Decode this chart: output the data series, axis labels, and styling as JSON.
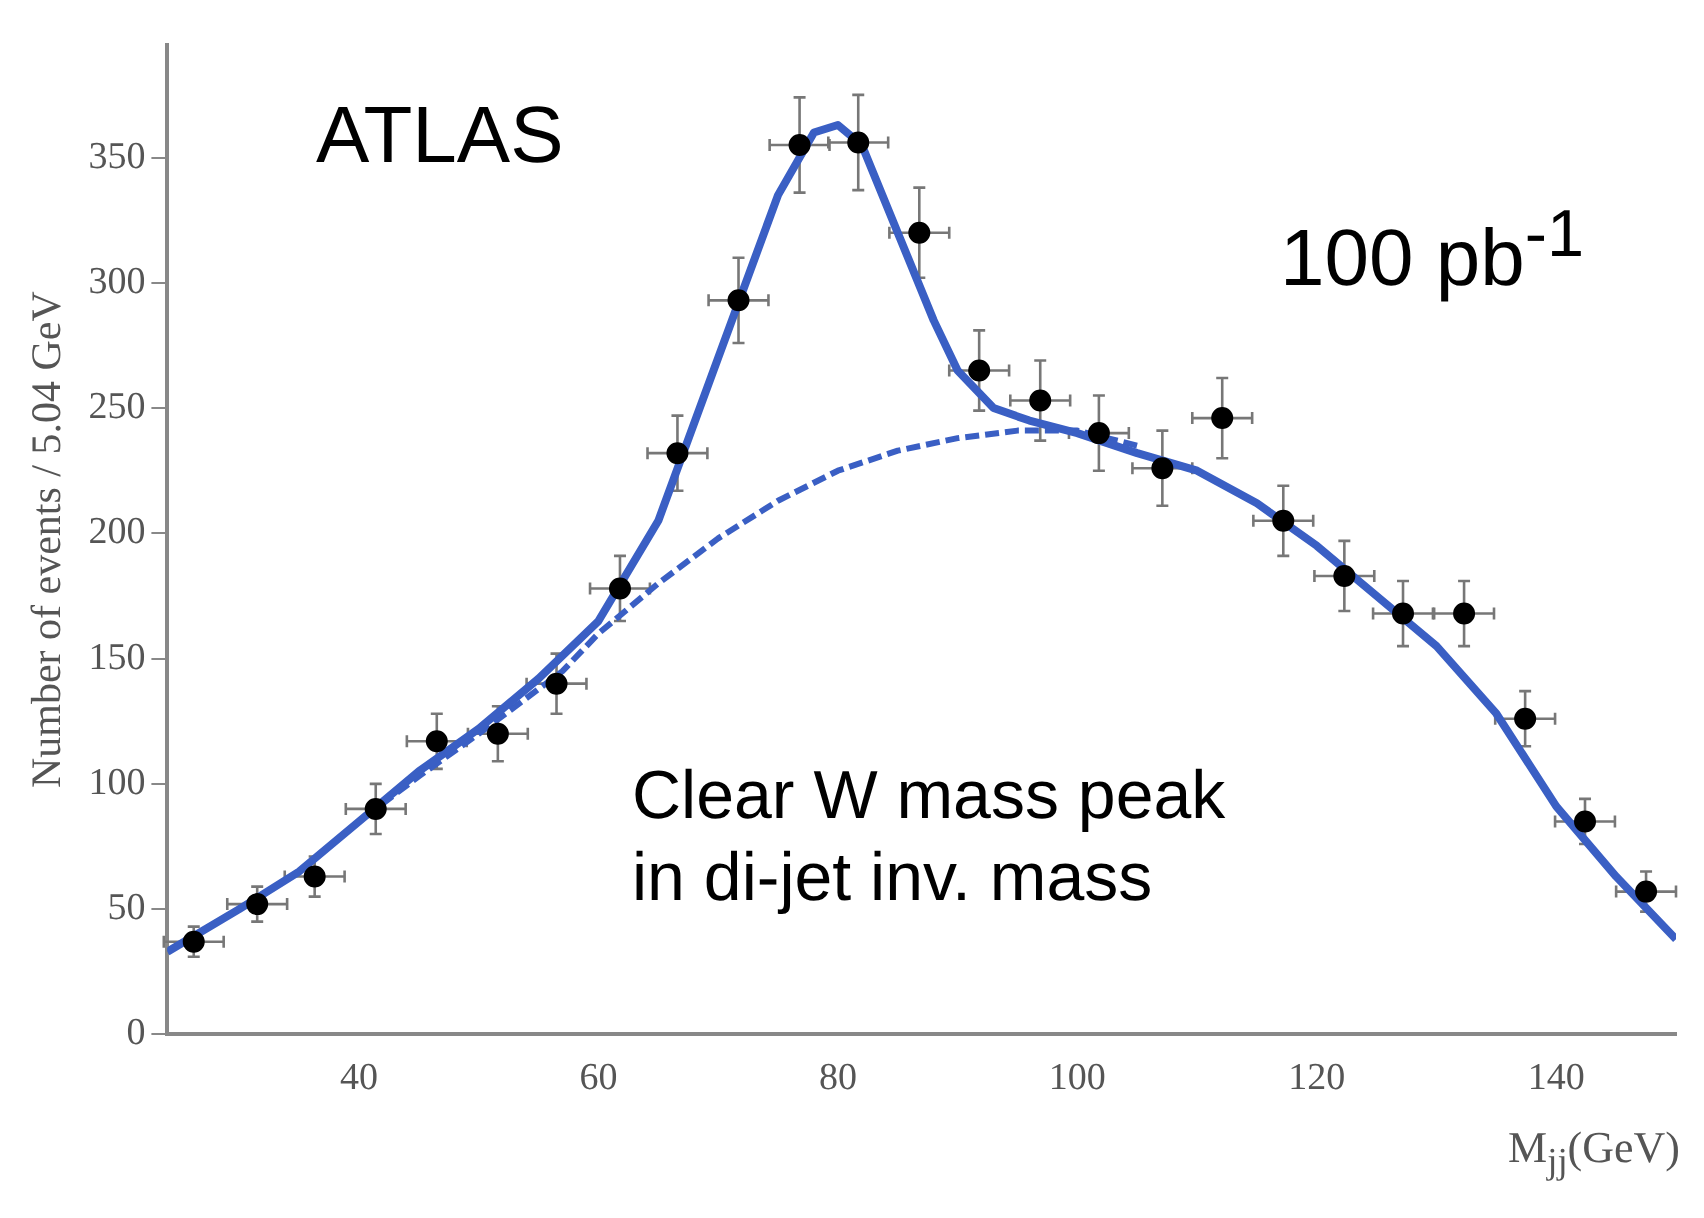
{
  "chart_data": {
    "type": "scatter",
    "xlabel": "M$_{jj}$(GeV)",
    "ylabel": "Number of events / 5.04 GeV",
    "xlim": [
      24,
      150
    ],
    "ylim": [
      0,
      395
    ],
    "xticks": [
      40,
      60,
      80,
      100,
      120,
      140
    ],
    "yticks": [
      0,
      50,
      100,
      150,
      200,
      250,
      300,
      350
    ],
    "grid": false,
    "legend": false,
    "annotations": [
      "ATLAS",
      "100 pb$^{-1}$",
      "Clear W mass peak\nin di-jet inv. mass"
    ],
    "series": [
      {
        "marker": "circle",
        "color": "#000000",
        "x": [
          26.2,
          31.5,
          36.3,
          41.4,
          46.5,
          51.6,
          56.5,
          61.8,
          66.6,
          71.7,
          76.8,
          81.7,
          86.8,
          91.8,
          96.9,
          101.8,
          107.1,
          112.1,
          117.2,
          122.3,
          127.2,
          132.3,
          137.4,
          142.4,
          147.5
        ],
        "values": [
          37,
          52,
          63,
          90,
          117,
          120,
          140,
          178,
          232,
          293,
          355,
          356,
          320,
          265,
          253,
          240,
          226,
          246,
          205,
          183,
          168,
          168,
          126,
          85,
          57
        ],
        "errors": [
          6,
          7,
          8,
          10,
          11,
          11,
          12,
          13,
          15,
          17,
          19,
          19,
          18,
          16,
          16,
          15,
          15,
          16,
          14,
          14,
          13,
          13,
          11,
          9,
          8
        ],
        "xerrors": [
          2.5,
          2.5,
          2.5,
          2.5,
          2.5,
          2.5,
          2.5,
          2.5,
          2.5,
          2.5,
          2.5,
          2.5,
          2.5,
          2.5,
          2.5,
          2.5,
          2.5,
          2.5,
          2.5,
          2.5,
          2.5,
          2.5,
          2.5,
          2.5,
          2.5
        ]
      },
      {
        "type": "line",
        "marker": "none",
        "color": "#3a5fc4",
        "line_style": "solid",
        "x": [
          24,
          30,
          35,
          40,
          45,
          50,
          55,
          60,
          65,
          70,
          75,
          78,
          80,
          82,
          85,
          88,
          90,
          93,
          96,
          100,
          105,
          110,
          115,
          120,
          125,
          130,
          135,
          140,
          145,
          150
        ],
        "values": [
          33,
          50,
          65,
          85,
          105,
          122,
          142,
          165,
          205,
          270,
          335,
          360,
          363,
          355,
          320,
          285,
          265,
          250,
          245,
          240,
          232,
          225,
          212,
          195,
          175,
          155,
          128,
          91,
          63,
          38
        ]
      },
      {
        "type": "line",
        "marker": "none",
        "color": "#3a5fc4",
        "line_style": "dashed",
        "x": [
          24,
          30,
          35,
          40,
          45,
          50,
          57,
          60,
          65,
          70,
          75,
          80,
          85,
          90,
          95,
          100,
          105
        ],
        "values": [
          33,
          50,
          65,
          85,
          103,
          120,
          145,
          160,
          180,
          198,
          213,
          225,
          233,
          238,
          241,
          241,
          235
        ]
      }
    ]
  }
}
